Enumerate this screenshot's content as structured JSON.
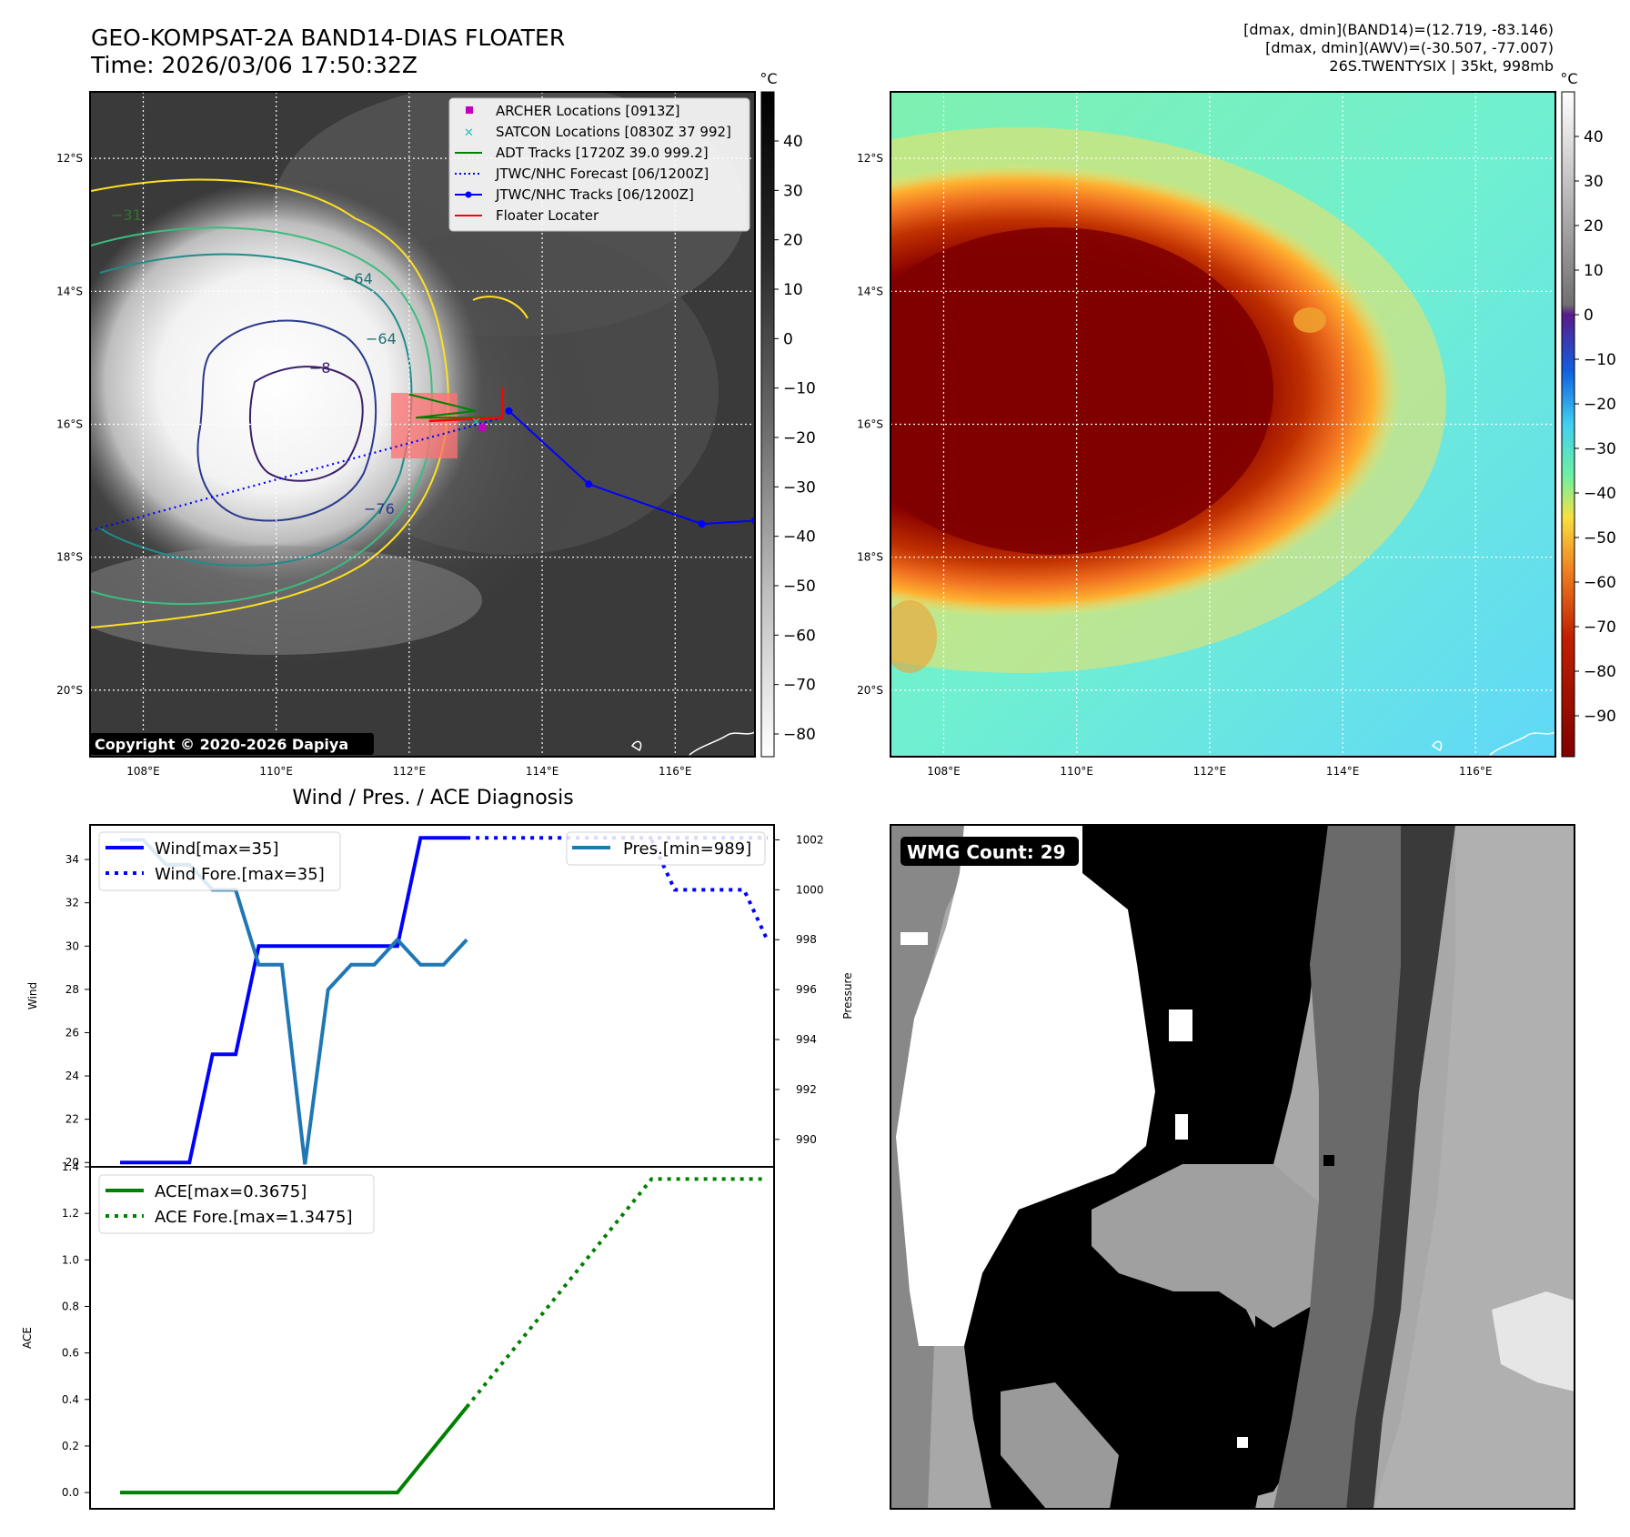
{
  "header": {
    "title_line1": "GEO-KOMPSAT-2A BAND14-DIAS FLOATER",
    "title_line2": "Time: 2026/03/06 17:50:32Z",
    "stats_line1": "[dmax, dmin](BAND14)=(12.719, -83.146)",
    "stats_line2": "[dmax, dmin](AWV)=(-30.507, -77.007)",
    "stats_line3": "26S.TWENTYSIX | 35kt, 998mb"
  },
  "copyright": "Copyright © 2020-2026 Dapiya",
  "chart_data": [
    {
      "type": "heatmap",
      "name_id": "band14-ir-map",
      "colorbar_unit": "°C",
      "colorbar_ticks": [
        "40",
        "30",
        "20",
        "10",
        "0",
        "−10",
        "−20",
        "−30",
        "−40",
        "−50",
        "−60",
        "−70",
        "−80"
      ],
      "lat_ticks": [
        "12°S",
        "14°S",
        "16°S",
        "18°S",
        "20°S"
      ],
      "lon_ticks": [
        "108°E",
        "110°E",
        "112°E",
        "114°E",
        "116°E"
      ],
      "xlim": [
        107.2,
        117.2
      ],
      "ylim": [
        -21.0,
        -11.0
      ],
      "contour_labels": [
        "−31",
        "−64",
        "−64",
        "−76",
        "−8"
      ],
      "legend": [
        {
          "label": "ARCHER Locations [0913Z]",
          "color": "#c000c0",
          "marker": "square"
        },
        {
          "label": "SATCON Locations [0830Z 37 992]",
          "color": "#20c0c0",
          "marker": "x"
        },
        {
          "label": "ADT Tracks [1720Z 39.0 999.2]",
          "color": "#008000",
          "marker": "line"
        },
        {
          "label": "JTWC/NHC Forecast [06/1200Z]",
          "color": "#0000ff",
          "marker": "dotted"
        },
        {
          "label": "JTWC/NHC Tracks [06/1200Z]",
          "color": "#0000ff",
          "marker": "line-dot"
        },
        {
          "label": "Floater Locater",
          "color": "#ff0000",
          "marker": "line"
        }
      ],
      "jtwc_track": [
        [
          113.5,
          -15.8
        ],
        [
          114.7,
          -16.9
        ],
        [
          116.4,
          -17.5
        ],
        [
          117.2,
          -17.45
        ]
      ],
      "jtwc_forecast": [
        [
          113.4,
          -15.9
        ],
        [
          107.2,
          -17.6
        ]
      ],
      "adt_track": [
        [
          112.0,
          -15.55
        ],
        [
          113.0,
          -15.8
        ],
        [
          112.1,
          -15.9
        ],
        [
          113.3,
          -15.9
        ]
      ],
      "floater_locater": [
        [
          112.3,
          -15.95
        ],
        [
          113.4,
          -15.9
        ],
        [
          113.4,
          -15.45
        ]
      ],
      "archer": [
        113.1,
        -16.05
      ],
      "satcon": [
        113.0,
        -15.95
      ]
    },
    {
      "type": "heatmap",
      "name_id": "awv-map",
      "colorbar_unit": "°C",
      "colorbar_ticks": [
        "40",
        "30",
        "20",
        "10",
        "0",
        "−10",
        "−20",
        "−30",
        "−40",
        "−50",
        "−60",
        "−70",
        "−80",
        "−90"
      ],
      "lat_ticks": [
        "12°S",
        "14°S",
        "16°S",
        "18°S",
        "20°S"
      ],
      "lon_ticks": [
        "108°E",
        "110°E",
        "112°E",
        "114°E",
        "116°E"
      ]
    },
    {
      "type": "line",
      "name_id": "wind-pressure",
      "title": "Wind / Pres. / ACE Diagnosis",
      "ylabel": "Wind",
      "ylabel_right": "Pressure",
      "ylim": [
        19.8,
        35.6
      ],
      "yticks": [
        "20",
        "22",
        "24",
        "26",
        "28",
        "30",
        "32",
        "34"
      ],
      "ylim_right": [
        988.9,
        1002.6
      ],
      "yticks_right": [
        "990",
        "992",
        "994",
        "996",
        "998",
        "1000",
        "1002"
      ],
      "x": [
        0,
        1,
        2,
        3,
        4,
        5,
        6,
        7,
        8,
        9,
        10,
        11,
        12,
        13,
        14,
        15,
        16,
        17,
        18,
        19,
        20,
        21,
        22,
        23,
        24,
        25,
        26,
        27,
        28
      ],
      "xlim": [
        -1.3,
        28.3
      ],
      "series": [
        {
          "name": "Wind[max=35]",
          "color": "#0000ff",
          "style": "solid",
          "x": [
            0,
            1,
            2,
            3,
            4,
            5,
            6,
            7,
            8,
            9,
            10,
            11,
            12,
            13,
            14,
            15
          ],
          "values": [
            20,
            20,
            20,
            20,
            25,
            25,
            30,
            30,
            30,
            30,
            30,
            30,
            30,
            35,
            35,
            35
          ]
        },
        {
          "name": "Wind Fore.[max=35]",
          "color": "#0000ff",
          "style": "dotted",
          "x": [
            15,
            28
          ],
          "values": [
            35,
            35
          ]
        }
      ],
      "series_right": [
        {
          "name": "Pres.[min=989]",
          "color": "#1f77b4",
          "style": "solid",
          "x": [
            0,
            1,
            2,
            3,
            4,
            5,
            6,
            7,
            8,
            9,
            10,
            11,
            12,
            13,
            14,
            15
          ],
          "values": [
            1002,
            1002,
            1001,
            1001,
            1000,
            1000,
            997,
            997,
            989,
            996,
            997,
            997,
            998,
            997,
            997,
            998
          ]
        },
        {
          "name": "",
          "color": "#0000ff",
          "style": "dotted",
          "x": [
            23,
            24,
            26,
            27,
            28
          ],
          "values": [
            1002,
            1000,
            1000,
            1000,
            998
          ]
        }
      ]
    },
    {
      "type": "line",
      "name_id": "ace",
      "ylabel": "ACE",
      "ylim": [
        -0.07,
        1.4
      ],
      "yticks": [
        "0.0",
        "0.2",
        "0.4",
        "0.6",
        "0.8",
        "1.0",
        "1.2",
        "1.4"
      ],
      "xlim": [
        -1.3,
        28.3
      ],
      "series": [
        {
          "name": "ACE[max=0.3675]",
          "color": "#008000",
          "style": "solid",
          "x": [
            0,
            12,
            15
          ],
          "values": [
            0,
            0,
            0.3675
          ]
        },
        {
          "name": "ACE Fore.[max=1.3475]",
          "color": "#008000",
          "style": "dotted",
          "x": [
            15,
            23,
            28
          ],
          "values": [
            0.3675,
            1.3475,
            1.3475
          ]
        }
      ]
    },
    {
      "type": "heatmap",
      "name_id": "wmg-count",
      "annotation": "WMG Count: 29"
    }
  ]
}
